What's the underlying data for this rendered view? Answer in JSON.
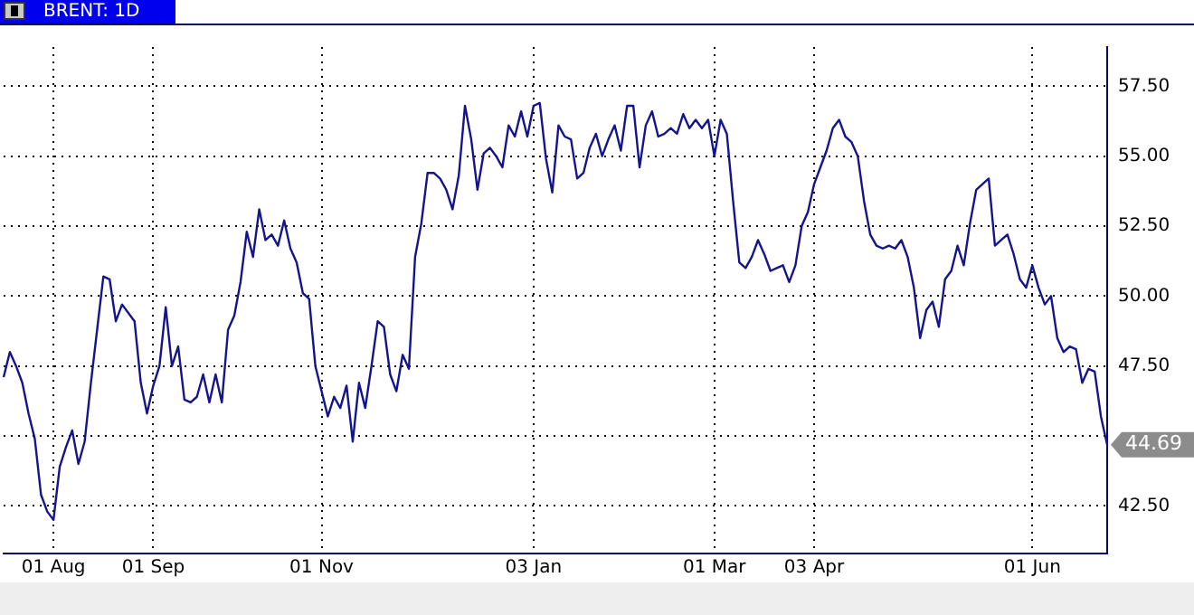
{
  "chart_data": {
    "type": "line",
    "title": "BRENT: 1D",
    "categories": [
      null,
      null,
      null,
      null,
      null,
      null,
      null,
      null,
      "01 Aug",
      null,
      null,
      null,
      null,
      null,
      null,
      null,
      null,
      null,
      null,
      null,
      null,
      null,
      null,
      null,
      "01 Sep",
      null,
      null,
      null,
      null,
      null,
      null,
      null,
      null,
      null,
      null,
      null,
      null,
      null,
      null,
      null,
      null,
      null,
      null,
      null,
      null,
      null,
      null,
      null,
      null,
      null,
      null,
      "01 Nov",
      null,
      null,
      null,
      null,
      null,
      null,
      null,
      null,
      null,
      null,
      null,
      null,
      null,
      null,
      null,
      null,
      null,
      null,
      null,
      null,
      null,
      null,
      null,
      null,
      null,
      null,
      null,
      null,
      null,
      null,
      null,
      null,
      null,
      "03 Jan",
      null,
      null,
      null,
      null,
      null,
      null,
      null,
      null,
      null,
      null,
      null,
      null,
      null,
      null,
      null,
      null,
      null,
      null,
      null,
      null,
      null,
      null,
      null,
      null,
      null,
      null,
      null,
      null,
      "01 Mar",
      null,
      null,
      null,
      null,
      null,
      null,
      null,
      null,
      null,
      null,
      null,
      null,
      null,
      null,
      null,
      "03 Apr",
      null,
      null,
      null,
      null,
      null,
      null,
      null,
      null,
      null,
      null,
      null,
      null,
      null,
      null,
      null,
      null,
      null,
      null,
      null,
      null,
      null,
      null,
      null,
      null,
      null,
      null,
      null,
      null,
      null,
      null,
      null,
      null,
      null,
      null,
      "01 Jun",
      null,
      null,
      null,
      null,
      null,
      null,
      null,
      null,
      null,
      null,
      null,
      null
    ],
    "values": [
      47.1,
      48.0,
      47.5,
      46.9,
      45.8,
      44.9,
      42.9,
      42.3,
      42.0,
      43.9,
      44.6,
      45.2,
      44.0,
      44.8,
      46.9,
      48.8,
      50.7,
      50.6,
      49.1,
      49.7,
      49.4,
      49.1,
      46.9,
      45.8,
      46.8,
      47.5,
      49.6,
      47.5,
      48.2,
      46.3,
      46.2,
      46.4,
      47.2,
      46.2,
      47.2,
      46.2,
      48.8,
      49.3,
      50.5,
      52.3,
      51.4,
      53.1,
      52.0,
      52.2,
      51.8,
      52.7,
      51.7,
      51.2,
      50.1,
      49.9,
      47.5,
      46.6,
      45.7,
      46.4,
      46.0,
      46.8,
      44.8,
      46.9,
      46.0,
      47.5,
      49.1,
      48.9,
      47.2,
      46.6,
      47.9,
      47.4,
      51.4,
      52.6,
      54.4,
      54.4,
      54.2,
      53.8,
      53.1,
      54.3,
      56.8,
      55.6,
      53.8,
      55.1,
      55.3,
      55.0,
      54.6,
      56.1,
      55.7,
      56.6,
      55.7,
      56.8,
      56.9,
      54.9,
      53.7,
      56.1,
      55.7,
      55.6,
      54.2,
      54.4,
      55.3,
      55.8,
      55.0,
      55.6,
      56.1,
      55.2,
      56.8,
      56.8,
      54.6,
      56.1,
      56.6,
      55.7,
      55.8,
      56.0,
      55.8,
      56.5,
      56.0,
      56.3,
      56.0,
      56.3,
      55.0,
      56.3,
      55.8,
      53.4,
      51.2,
      51.0,
      51.4,
      52.0,
      51.5,
      50.9,
      51.0,
      51.1,
      50.5,
      51.1,
      52.5,
      53.0,
      54.0,
      54.6,
      55.2,
      56.0,
      56.3,
      55.7,
      55.5,
      55.0,
      53.4,
      52.2,
      51.8,
      51.7,
      51.8,
      51.7,
      52.0,
      51.4,
      50.3,
      48.5,
      49.5,
      49.8,
      48.9,
      50.6,
      50.9,
      51.8,
      51.1,
      52.6,
      53.8,
      54.0,
      54.2,
      51.8,
      52.0,
      52.2,
      51.5,
      50.6,
      50.3,
      51.1,
      50.3,
      49.7,
      50.0,
      48.5,
      48.0,
      48.2,
      48.1,
      46.9,
      47.4,
      47.3,
      45.7,
      44.69
    ],
    "color": "#14148c",
    "marker": "none",
    "line_style": "solid",
    "grid": true,
    "legend": false,
    "ylim": [
      40.8,
      58.9
    ],
    "yticks": [
      {
        "value": 42.5,
        "label": "42.50"
      },
      {
        "value": 45,
        "label": null
      },
      {
        "value": 47.5,
        "label": "47.50"
      },
      {
        "value": 50,
        "label": "50.00"
      },
      {
        "value": 52.5,
        "label": "52.50"
      },
      {
        "value": 55,
        "label": "55.00"
      },
      {
        "value": 57.5,
        "label": "57.50"
      }
    ],
    "annotations": [
      "44.69"
    ]
  }
}
